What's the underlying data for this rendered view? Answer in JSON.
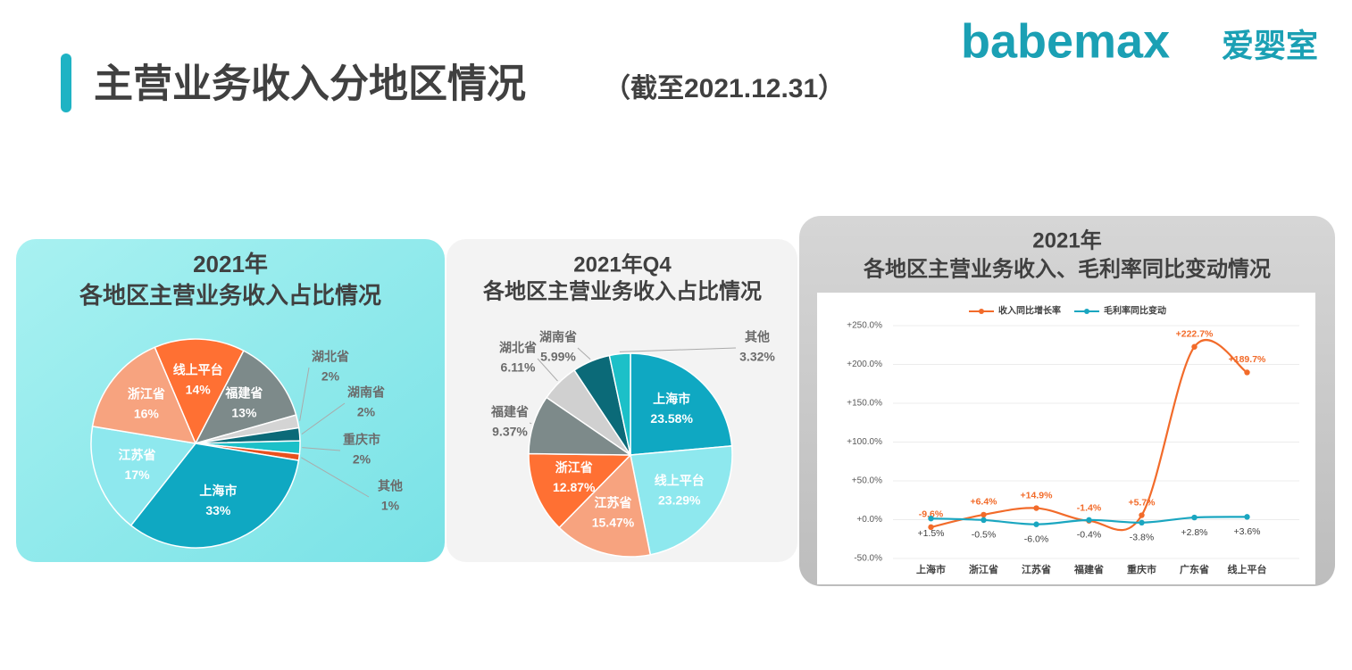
{
  "header": {
    "title": "主营业务收入分地区情况",
    "subtitle": "（截至2021.12.31）"
  },
  "logo": {
    "brand": "babemax",
    "name": "爱婴室"
  },
  "chart_data": [
    {
      "type": "pie",
      "title": "2021年",
      "subtitle": "各地区主营业务收入占比情况",
      "categories": [
        "线上平台",
        "福建省",
        "湖北省",
        "湖南省",
        "重庆市",
        "其他",
        "上海市",
        "江苏省",
        "浙江省"
      ],
      "values": [
        14,
        13,
        2,
        2,
        2,
        1,
        33,
        17,
        16
      ],
      "value_labels": [
        "14%",
        "13%",
        "2%",
        "2%",
        "2%",
        "1%",
        "33%",
        "17%",
        "16%"
      ],
      "colors": [
        "#ff7033",
        "#7d8a8a",
        "#d4d4d4",
        "#0b6a78",
        "#1cc0c8",
        "#e8501e",
        "#0fa8c2",
        "#8ee8ee",
        "#f7a37f"
      ]
    },
    {
      "type": "pie",
      "title": "2021年Q4",
      "subtitle": "各地区主营业务收入占比情况",
      "categories": [
        "上海市",
        "线上平台",
        "江苏省",
        "浙江省",
        "福建省",
        "湖北省",
        "湖南省",
        "其他"
      ],
      "values": [
        23.58,
        23.29,
        15.47,
        12.87,
        9.37,
        6.11,
        5.99,
        3.32
      ],
      "value_labels": [
        "23.58%",
        "23.29%",
        "15.47%",
        "12.87%",
        "9.37%",
        "6.11%",
        "5.99%",
        "3.32%"
      ],
      "colors": [
        "#0fa8c2",
        "#8ee8ee",
        "#f7a37f",
        "#ff7033",
        "#7d8a8a",
        "#d0d0d0",
        "#0b6a78",
        "#1cc0c8"
      ]
    },
    {
      "type": "line",
      "title": "2021年",
      "subtitle": "各地区主营业务收入、毛利率同比变动情况",
      "categories": [
        "上海市",
        "浙江省",
        "江苏省",
        "福建省",
        "重庆市",
        "广东省",
        "线上平台"
      ],
      "series": [
        {
          "name": "收入同比增长率",
          "color": "#f26b2a",
          "values": [
            -9.6,
            6.4,
            14.9,
            -1.4,
            5.7,
            222.7,
            189.7
          ],
          "value_labels": [
            "-9.6%",
            "+6.4%",
            "+14.9%",
            "-1.4%",
            "+5.7%",
            "+222.7%",
            "+189.7%"
          ]
        },
        {
          "name": "毛利率同比变动",
          "color": "#1aa6c0",
          "values": [
            1.5,
            -0.5,
            -6.0,
            -0.4,
            -3.8,
            2.8,
            3.6
          ],
          "value_labels": [
            "+1.5%",
            "-0.5%",
            "-6.0%",
            "-0.4%",
            "-3.8%",
            "+2.8%",
            "+3.6%"
          ]
        }
      ],
      "ylim": [
        -50,
        250
      ],
      "yticks": [
        {
          "value": -50,
          "label": "-50.0%"
        },
        {
          "value": 0,
          "label": "+0.0%"
        },
        {
          "value": 50,
          "label": "+50.0%"
        },
        {
          "value": 100,
          "label": "+100.0%"
        },
        {
          "value": 150,
          "label": "+150.0%"
        },
        {
          "value": 200,
          "label": "+200.0%"
        },
        {
          "value": 250,
          "label": "+250.0%"
        }
      ],
      "grid": true,
      "legend": "top"
    }
  ]
}
